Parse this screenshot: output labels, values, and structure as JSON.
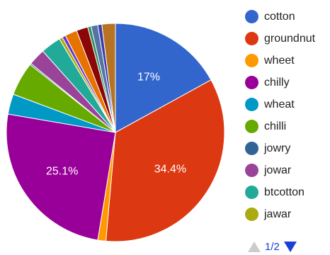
{
  "chart_data": {
    "type": "pie",
    "slices": [
      {
        "label": "cotton",
        "value": 17.0,
        "color": "#3366cc",
        "data_label": "17%"
      },
      {
        "label": "groundnut",
        "value": 34.4,
        "color": "#dc3912",
        "data_label": "34.4%"
      },
      {
        "label": "wheet",
        "value": 1.2,
        "color": "#ff9900",
        "data_label": ""
      },
      {
        "label": "chilly",
        "value": 25.1,
        "color": "#990099",
        "data_label": "25.1%"
      },
      {
        "label": "wheat",
        "value": 3.0,
        "color": "#0099c6",
        "data_label": ""
      },
      {
        "label": "chilli",
        "value": 5.0,
        "color": "#66aa00",
        "data_label": ""
      },
      {
        "label": "jowry",
        "value": 0.2,
        "color": "#316395",
        "data_label": ""
      },
      {
        "label": "jowar",
        "value": 2.5,
        "color": "#994499",
        "data_label": ""
      },
      {
        "label": "btcotton",
        "value": 3.0,
        "color": "#22aa99",
        "data_label": ""
      },
      {
        "label": "jawar",
        "value": 0.5,
        "color": "#aaaa11",
        "data_label": ""
      },
      {
        "label": "",
        "value": 0.5,
        "color": "#6633cc",
        "data_label": ""
      },
      {
        "label": "",
        "value": 1.8,
        "color": "#e67300",
        "data_label": ""
      },
      {
        "label": "",
        "value": 1.7,
        "color": "#8b0707",
        "data_label": ""
      },
      {
        "label": "",
        "value": 0.5,
        "color": "#329262",
        "data_label": ""
      },
      {
        "label": "",
        "value": 1.0,
        "color": "#5574a6",
        "data_label": ""
      },
      {
        "label": "",
        "value": 0.6,
        "color": "#3b3eac",
        "data_label": ""
      },
      {
        "label": "",
        "value": 2.0,
        "color": "#b77322",
        "data_label": ""
      }
    ],
    "legend_position": "right"
  },
  "legend": {
    "items": [
      {
        "label": "cotton",
        "color": "#3366cc"
      },
      {
        "label": "groundnut",
        "color": "#dc3912"
      },
      {
        "label": "wheet",
        "color": "#ff9900"
      },
      {
        "label": "chilly",
        "color": "#990099"
      },
      {
        "label": "wheat",
        "color": "#0099c6"
      },
      {
        "label": "chilli",
        "color": "#66aa00"
      },
      {
        "label": "jowry",
        "color": "#316395"
      },
      {
        "label": "jowar",
        "color": "#994499"
      },
      {
        "label": "btcotton",
        "color": "#22aa99"
      },
      {
        "label": "jawar",
        "color": "#aaaa11"
      }
    ]
  },
  "pager": {
    "label": "1/2",
    "up_icon": "triangle-up-icon",
    "down_icon": "triangle-down-icon",
    "inactive_color": "#cccccc",
    "active_color": "#1a3ed8"
  }
}
